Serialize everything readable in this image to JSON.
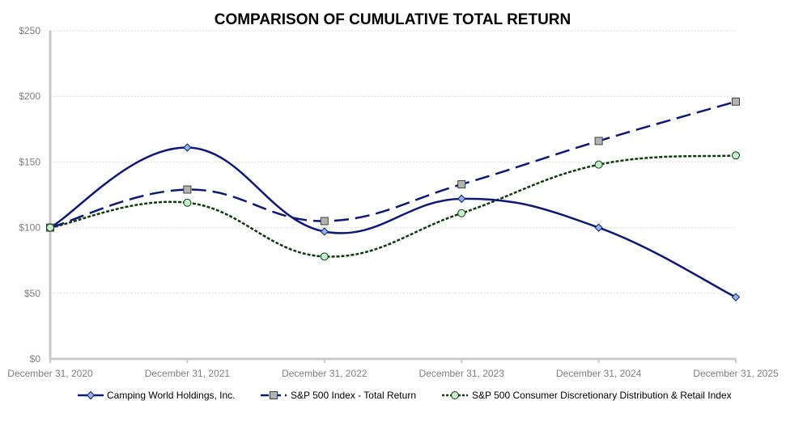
{
  "chart_data": {
    "type": "line",
    "title": "COMPARISON OF CUMULATIVE TOTAL RETURN",
    "xlabel": "",
    "ylabel": "",
    "categories": [
      "December 31, 2020",
      "December 31, 2021",
      "December 31, 2022",
      "December 31, 2023",
      "December 31, 2024",
      "December 31, 2025"
    ],
    "ylim": [
      0,
      250
    ],
    "y_ticks": [
      0,
      50,
      100,
      150,
      200,
      250
    ],
    "y_tick_labels": [
      "$0",
      "$50",
      "$100",
      "$150",
      "$200",
      "$250"
    ],
    "grid": true,
    "legend_position": "bottom",
    "series": [
      {
        "name": "Camping World Holdings, Inc.",
        "values": [
          100,
          161,
          97,
          122,
          100,
          47
        ],
        "color": "#0d1a75",
        "line_style": "solid",
        "marker": "diamond",
        "marker_color": "#8db4e2"
      },
      {
        "name": "S&P 500 Index - Total Return",
        "values": [
          100,
          129,
          105,
          133,
          166,
          196
        ],
        "color": "#0d1a75",
        "line_style": "long-dash",
        "marker": "square",
        "marker_color": "#b3b3b3"
      },
      {
        "name": "S&P 500 Consumer Discretionary Distribution & Retail Index",
        "values": [
          100,
          119,
          78,
          111,
          148,
          155
        ],
        "color": "#0b3d0b",
        "line_style": "dotted",
        "marker": "circle",
        "marker_color": "#c6efce"
      }
    ]
  }
}
